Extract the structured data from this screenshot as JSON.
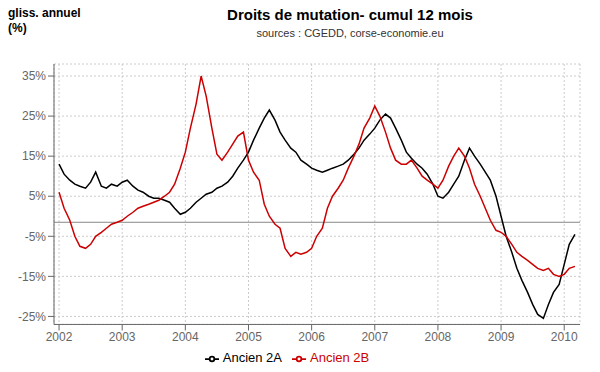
{
  "chart_data": {
    "type": "line",
    "title": "Droits de mutation- cumul 12 mois",
    "subtitle": "sources : CGEDD, corse-economie.eu",
    "ylabel": [
      "gliss. annuel",
      "(%)"
    ],
    "x": [
      2002.0,
      2002.08,
      2002.17,
      2002.25,
      2002.33,
      2002.42,
      2002.5,
      2002.58,
      2002.67,
      2002.75,
      2002.83,
      2002.92,
      2003.0,
      2003.08,
      2003.17,
      2003.25,
      2003.33,
      2003.42,
      2003.5,
      2003.58,
      2003.67,
      2003.75,
      2003.83,
      2003.92,
      2004.0,
      2004.08,
      2004.17,
      2004.25,
      2004.33,
      2004.42,
      2004.5,
      2004.58,
      2004.67,
      2004.75,
      2004.83,
      2004.92,
      2005.0,
      2005.08,
      2005.17,
      2005.25,
      2005.33,
      2005.42,
      2005.5,
      2005.58,
      2005.67,
      2005.75,
      2005.83,
      2005.92,
      2006.0,
      2006.08,
      2006.17,
      2006.25,
      2006.33,
      2006.42,
      2006.5,
      2006.58,
      2006.67,
      2006.75,
      2006.83,
      2006.92,
      2007.0,
      2007.08,
      2007.17,
      2007.25,
      2007.33,
      2007.42,
      2007.5,
      2007.58,
      2007.67,
      2007.75,
      2007.83,
      2007.92,
      2008.0,
      2008.08,
      2008.17,
      2008.25,
      2008.33,
      2008.42,
      2008.5,
      2008.58,
      2008.67,
      2008.75,
      2008.83,
      2008.92,
      2009.0,
      2009.08,
      2009.17,
      2009.25,
      2009.33,
      2009.42,
      2009.5,
      2009.58,
      2009.67,
      2009.75,
      2009.83,
      2009.92,
      2010.0,
      2010.08,
      2010.17
    ],
    "series": [
      {
        "name": "Ancien 2A",
        "color": "#000000",
        "values": [
          13.0,
          10.5,
          9.0,
          8.0,
          7.5,
          7.0,
          8.5,
          11.0,
          7.5,
          7.0,
          8.0,
          7.5,
          8.5,
          9.0,
          7.5,
          6.5,
          6.0,
          5.0,
          4.5,
          4.5,
          4.0,
          3.5,
          2.0,
          0.5,
          1.0,
          2.0,
          3.5,
          4.5,
          5.5,
          6.0,
          7.0,
          7.5,
          8.5,
          10.0,
          12.0,
          14.0,
          16.0,
          19.0,
          22.0,
          24.5,
          26.5,
          24.0,
          21.0,
          19.0,
          17.0,
          16.0,
          14.0,
          13.0,
          12.0,
          11.5,
          11.0,
          11.5,
          12.0,
          12.5,
          13.0,
          14.0,
          15.5,
          17.0,
          19.0,
          20.5,
          22.0,
          24.0,
          25.5,
          24.5,
          22.0,
          19.0,
          16.0,
          14.5,
          13.0,
          12.0,
          10.5,
          8.0,
          5.0,
          4.5,
          6.0,
          8.0,
          10.0,
          14.0,
          17.0,
          15.0,
          13.0,
          11.0,
          9.0,
          5.0,
          0.0,
          -5.0,
          -9.0,
          -13.0,
          -16.0,
          -19.0,
          -22.0,
          -24.5,
          -25.5,
          -22.0,
          -19.0,
          -17.0,
          -12.0,
          -7.0,
          -4.5
        ]
      },
      {
        "name": "Ancien 2B",
        "color": "#cc0000",
        "values": [
          6.0,
          2.0,
          -1.0,
          -5.0,
          -7.5,
          -8.0,
          -7.0,
          -5.0,
          -4.0,
          -3.0,
          -2.0,
          -1.5,
          -1.0,
          0.0,
          1.0,
          2.0,
          2.5,
          3.0,
          3.5,
          4.0,
          5.0,
          6.0,
          8.0,
          12.0,
          16.0,
          22.0,
          28.0,
          35.0,
          30.0,
          22.0,
          15.5,
          14.0,
          16.0,
          18.0,
          20.0,
          21.0,
          14.0,
          11.0,
          9.0,
          3.0,
          0.0,
          -2.0,
          -3.0,
          -8.0,
          -10.0,
          -9.0,
          -9.5,
          -9.0,
          -8.0,
          -5.0,
          -3.0,
          2.0,
          5.0,
          7.0,
          9.0,
          12.0,
          15.0,
          18.0,
          22.0,
          24.5,
          27.5,
          25.0,
          21.0,
          17.0,
          14.0,
          13.0,
          13.0,
          14.0,
          12.0,
          10.0,
          9.0,
          8.0,
          7.0,
          9.0,
          12.5,
          15.0,
          17.0,
          15.0,
          12.0,
          8.0,
          5.0,
          2.0,
          -1.0,
          -3.5,
          -4.0,
          -5.0,
          -7.0,
          -9.0,
          -10.0,
          -11.0,
          -12.0,
          -13.0,
          -13.5,
          -13.0,
          -14.5,
          -15.0,
          -14.5,
          -13.0,
          -12.5
        ]
      }
    ],
    "reference_line": {
      "y": -1.5,
      "color": "#888888"
    },
    "xlim": [
      2001.92,
      2010.25
    ],
    "xticks": [
      2002,
      2003,
      2004,
      2005,
      2006,
      2007,
      2008,
      2009,
      2010
    ],
    "ylim": [
      -27,
      38
    ],
    "yticks": [
      {
        "value": -25,
        "label": "-25%"
      },
      {
        "value": -15,
        "label": "-15%"
      },
      {
        "value": -5,
        "label": "-5%"
      },
      {
        "value": 5,
        "label": "5%"
      },
      {
        "value": 15,
        "label": "15%"
      },
      {
        "value": 25,
        "label": "25%"
      },
      {
        "value": 35,
        "label": "35%"
      }
    ],
    "grid": true,
    "legend": "bottom"
  }
}
